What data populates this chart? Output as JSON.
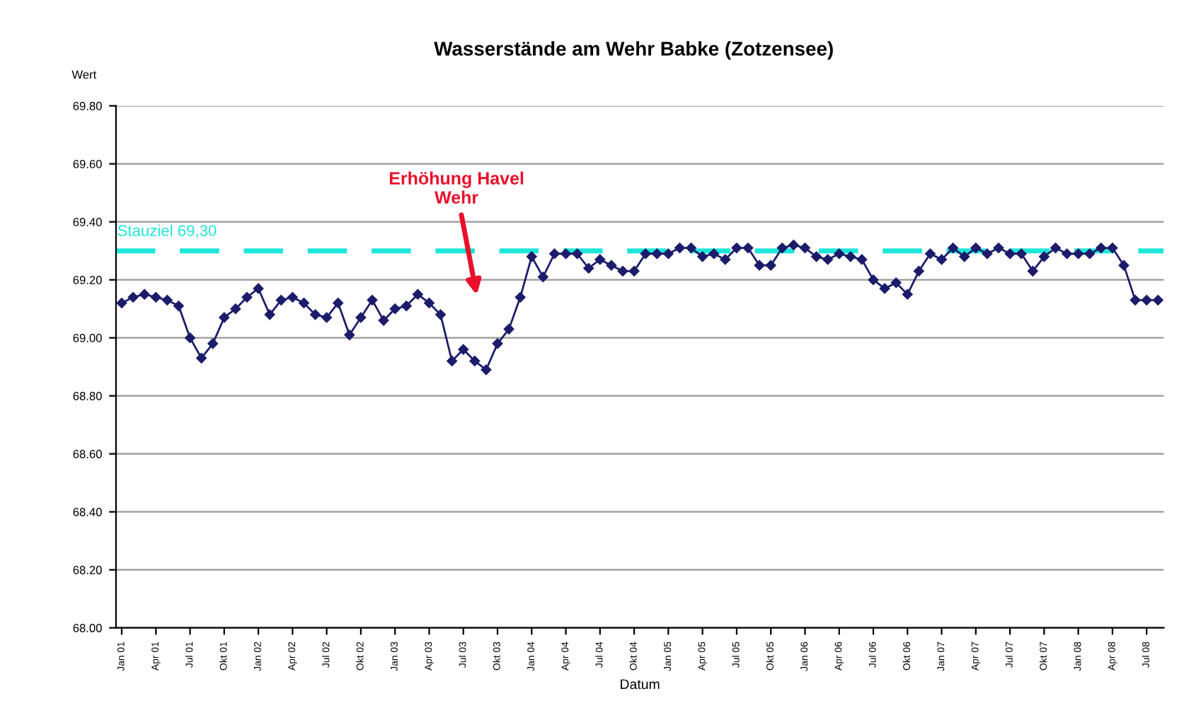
{
  "chart_data": {
    "type": "line",
    "title": "Wasserstände am Wehr Babke (Zotzensee)",
    "ylabel": "Wert",
    "xlabel": "Datum",
    "categories": [
      "Jan 01",
      null,
      null,
      "Apr 01",
      null,
      null,
      "Jul 01",
      null,
      null,
      "Okt 01",
      null,
      null,
      "Jan 02",
      null,
      null,
      "Apr 02",
      null,
      null,
      "Jul 02",
      null,
      null,
      "Okt 02",
      null,
      null,
      "Jan 03",
      null,
      null,
      "Apr 03",
      null,
      null,
      "Jul 03",
      null,
      null,
      "Okt 03",
      null,
      null,
      "Jan 04",
      null,
      null,
      "Apr 04",
      null,
      null,
      "Jul 04",
      null,
      null,
      "Okt 04",
      null,
      null,
      "Jan 05",
      null,
      null,
      "Apr 05",
      null,
      null,
      "Jul 05",
      null,
      null,
      "Okt 05",
      null,
      null,
      "Jan 06",
      null,
      null,
      "Apr 06",
      null,
      null,
      "Jul 06",
      null,
      null,
      "Okt 06",
      null,
      null,
      "Jan 07",
      null,
      null,
      "Apr 07",
      null,
      null,
      "Jul 07",
      null,
      null,
      "Okt 07",
      null,
      null,
      "Jan 08",
      null,
      null,
      "Apr 08",
      null,
      null,
      "Jul 08",
      null
    ],
    "series": [
      {
        "color": "#1c1c6b",
        "values": [
          69.12,
          69.14,
          69.15,
          69.14,
          69.13,
          69.11,
          69.0,
          68.93,
          68.98,
          69.07,
          69.1,
          69.14,
          69.17,
          69.08,
          69.13,
          69.14,
          69.12,
          69.08,
          69.07,
          69.12,
          69.01,
          69.07,
          69.13,
          69.06,
          69.1,
          69.11,
          69.15,
          69.12,
          69.08,
          68.92,
          68.96,
          68.92,
          68.89,
          68.98,
          69.03,
          69.14,
          69.28,
          69.21,
          69.29,
          69.29,
          69.29,
          69.24,
          69.27,
          69.25,
          69.23,
          69.23,
          69.29,
          69.29,
          69.29,
          69.31,
          69.31,
          69.28,
          69.29,
          69.27,
          69.31,
          69.31,
          69.25,
          69.25,
          69.31,
          69.32,
          69.31,
          69.28,
          69.27,
          69.29,
          69.28,
          69.27,
          69.2,
          69.17,
          69.19,
          69.15,
          69.23,
          69.29,
          69.27,
          69.31,
          69.28,
          69.31,
          69.29,
          69.31,
          69.29,
          69.29,
          69.23,
          69.28,
          69.31,
          69.29,
          69.29,
          69.29,
          69.31,
          69.31,
          69.25,
          69.13,
          69.13,
          69.13
        ]
      }
    ],
    "ylim": [
      68.0,
      69.8
    ],
    "yticks": [
      {
        "value": 68.0,
        "label": "68.00"
      },
      {
        "value": 68.2,
        "label": "68.20"
      },
      {
        "value": 68.4,
        "label": "68.40"
      },
      {
        "value": 68.6,
        "label": "68.60"
      },
      {
        "value": 68.8,
        "label": "68.80"
      },
      {
        "value": 69.0,
        "label": "69.00"
      },
      {
        "value": 69.2,
        "label": "69.20"
      },
      {
        "value": 69.4,
        "label": "69.40"
      },
      {
        "value": 69.6,
        "label": "69.60"
      },
      {
        "value": 69.8,
        "label": "69.80"
      }
    ],
    "grid": "y",
    "marker": "diamond",
    "line_style": "solid",
    "legend": false,
    "ref_lines": [
      {
        "axis": "y",
        "value": 69.3,
        "label": "Stauziel 69,30",
        "color": "#1ee6d8",
        "line_style": "dashed"
      }
    ],
    "annotations": [
      "Erhöhung Havel\nWehr"
    ]
  }
}
